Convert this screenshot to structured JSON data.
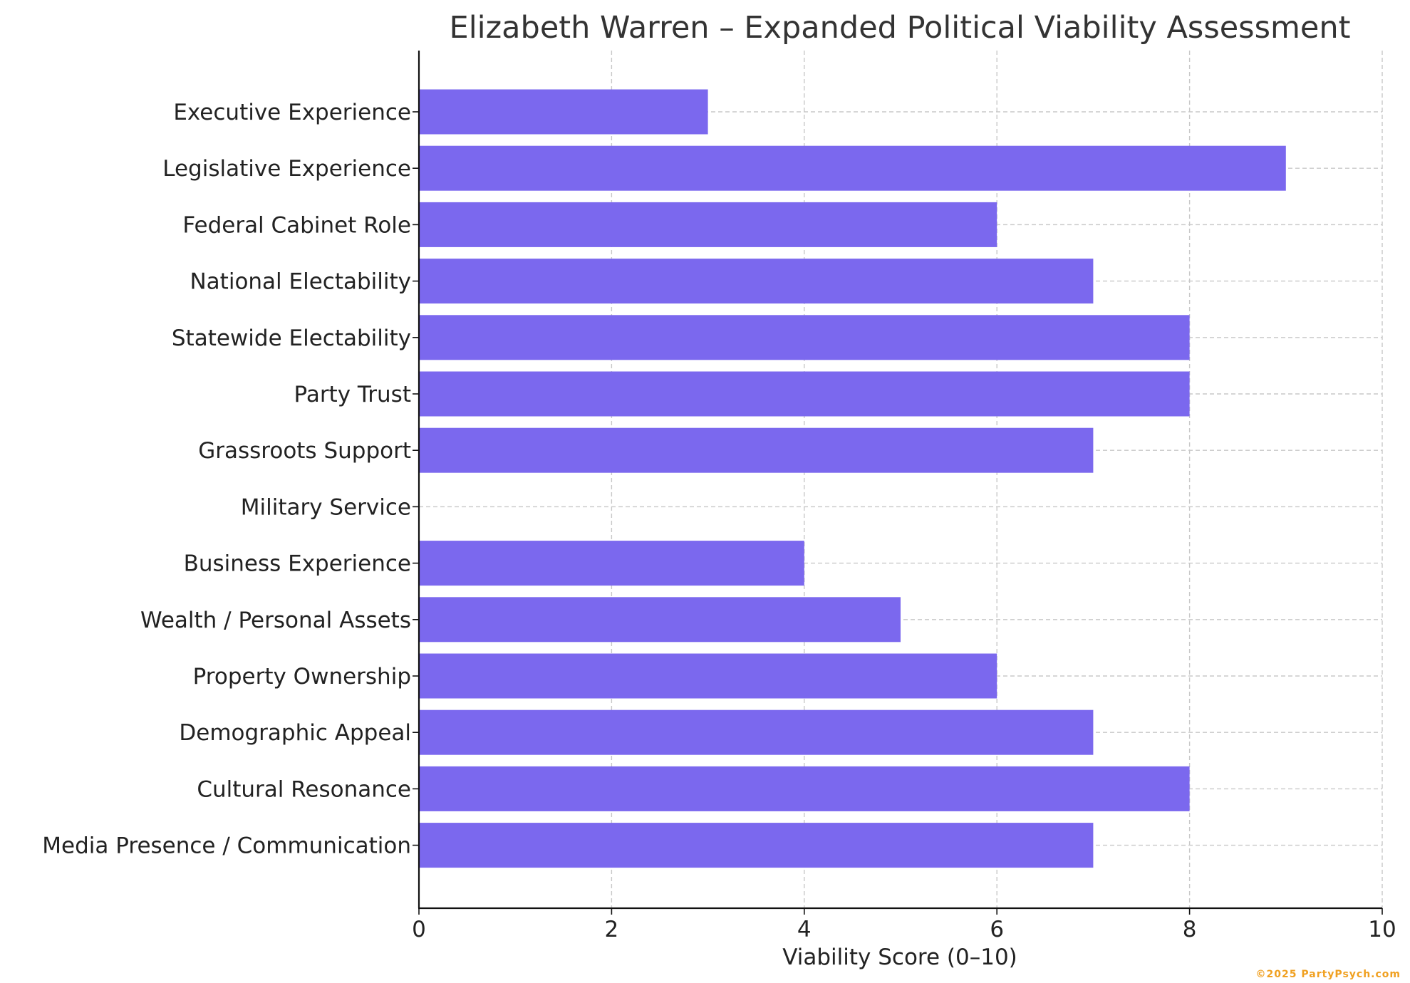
{
  "chart_data": {
    "type": "bar",
    "orientation": "horizontal",
    "title": "Elizabeth Warren – Expanded Political Viability Assessment",
    "xlabel": "Viability Score (0–10)",
    "ylabel": "",
    "xlim": [
      0,
      10
    ],
    "xticks": [
      "0",
      "2",
      "4",
      "6",
      "8",
      "10"
    ],
    "grid": true,
    "bar_color": "#7b68ee",
    "categories": [
      "Executive Experience",
      "Legislative Experience",
      "Federal Cabinet Role",
      "National Electability",
      "Statewide Electability",
      "Party Trust",
      "Grassroots Support",
      "Military Service",
      "Business Experience",
      "Wealth / Personal Assets",
      "Property Ownership",
      "Demographic Appeal",
      "Cultural Resonance",
      "Media Presence / Communication"
    ],
    "values": [
      3,
      9,
      6,
      7,
      8,
      8,
      7,
      0,
      4,
      5,
      6,
      7,
      8,
      7
    ]
  },
  "watermark": "©2025 PartyPsych.com"
}
